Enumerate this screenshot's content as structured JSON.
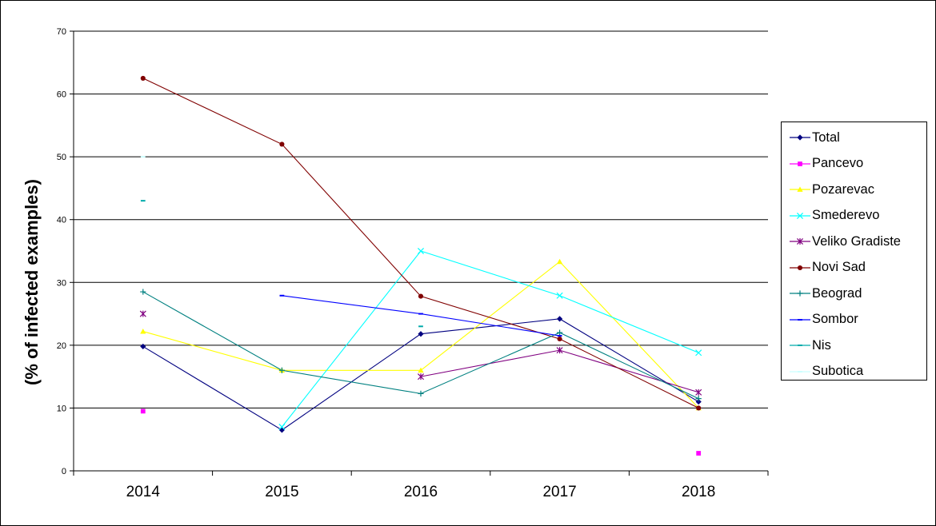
{
  "chart_data": {
    "type": "line",
    "title": "",
    "xlabel": "",
    "ylabel": "(% of infected examples)",
    "categories": [
      "2014",
      "2015",
      "2016",
      "2017",
      "2018"
    ],
    "ylim": [
      0,
      70
    ],
    "yticks": [
      0,
      10,
      20,
      30,
      40,
      50,
      60,
      70
    ],
    "grid": true,
    "legend_position": "right",
    "series": [
      {
        "name": "Total",
        "color": "#000080",
        "marker": "diamond",
        "values": [
          19.8,
          6.5,
          21.8,
          24.2,
          11.0
        ]
      },
      {
        "name": "Pancevo",
        "color": "#FF00FF",
        "marker": "square",
        "values": [
          9.5,
          null,
          null,
          null,
          2.8
        ]
      },
      {
        "name": "Pozarevac",
        "color": "#FFFF00",
        "marker": "triangle",
        "values": [
          22.2,
          16.0,
          16.0,
          33.3,
          10.0
        ]
      },
      {
        "name": "Smederevo",
        "color": "#00FFFF",
        "marker": "x",
        "values": [
          null,
          7.0,
          35.0,
          27.9,
          18.8
        ]
      },
      {
        "name": "Veliko Gradiste",
        "color": "#800080",
        "marker": "star",
        "values": [
          25.0,
          null,
          15.0,
          19.2,
          12.5
        ]
      },
      {
        "name": "Novi Sad",
        "color": "#800000",
        "marker": "circle",
        "values": [
          62.5,
          52.0,
          27.8,
          21.0,
          10.0
        ]
      },
      {
        "name": "Beograd",
        "color": "#008080",
        "marker": "plus",
        "values": [
          28.5,
          16.0,
          12.3,
          22.0,
          11.5
        ]
      },
      {
        "name": "Sombor",
        "color": "#0000FF",
        "marker": "dash",
        "values": [
          null,
          27.9,
          25.0,
          21.5,
          null
        ]
      },
      {
        "name": "Nis",
        "color": "#00AAAA",
        "marker": "dash",
        "values": [
          43.0,
          null,
          23.0,
          null,
          null
        ]
      },
      {
        "name": "Subotica",
        "color": "#CCFFFF",
        "marker": "dash",
        "values": [
          50.0,
          null,
          null,
          null,
          null
        ]
      }
    ]
  }
}
